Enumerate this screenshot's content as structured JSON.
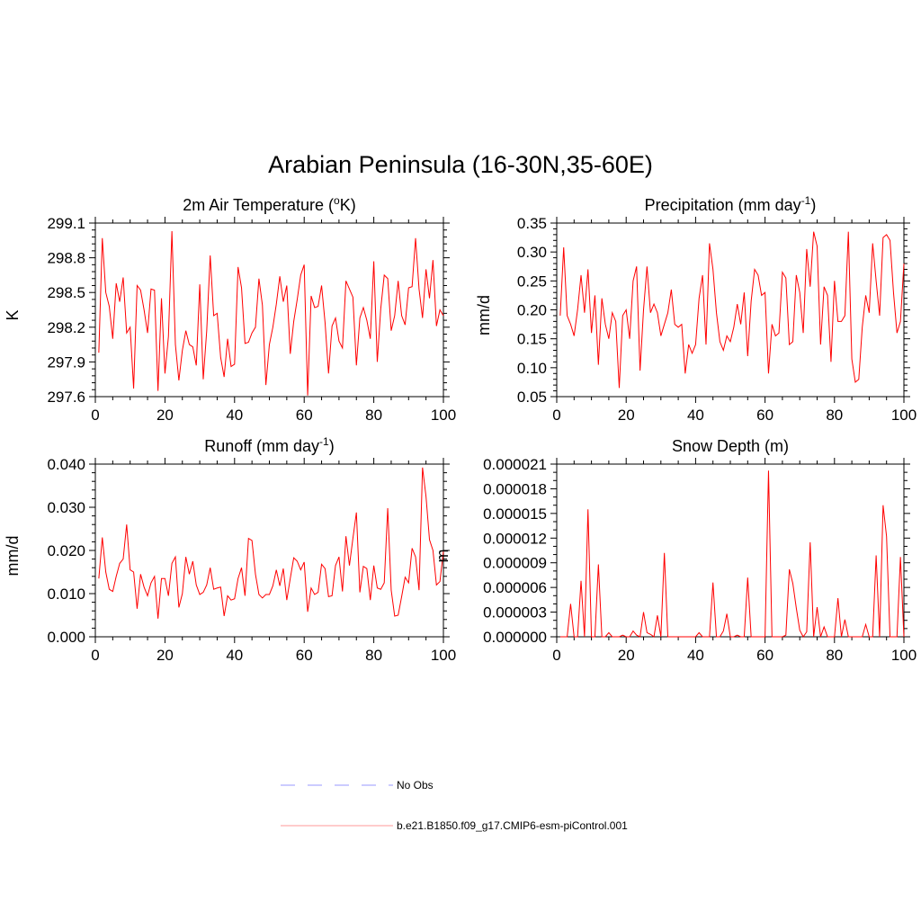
{
  "figure": {
    "title": "Arabian Peninsula (16-30N,35-60E)"
  },
  "legend": {
    "items": [
      {
        "label": "No Obs",
        "color": "#9999ff",
        "dashed": true
      },
      {
        "label": "b.e21.B1850.f09_g17.CMIP6-esm-piControl.001",
        "color": "#ff9999",
        "dashed": false
      }
    ]
  },
  "chart_data": [
    {
      "type": "line",
      "title": "2m Air Temperature (",
      "title_sup": "o",
      "title_after": "K)",
      "ylabel": "K",
      "xlim": [
        0,
        100
      ],
      "ylim": [
        297.6,
        299.1
      ],
      "xticks": [
        0,
        20,
        40,
        60,
        80,
        100
      ],
      "xtick_labels": [
        "0",
        "20",
        "40",
        "60",
        "80",
        "100"
      ],
      "yticks": [
        297.6,
        297.9,
        298.2,
        298.5,
        298.8,
        299.1
      ],
      "ytick_labels": [
        "297.6",
        "297.9",
        "298.2",
        "298.5",
        "298.8",
        "299.1"
      ],
      "yminor_per_major": 5,
      "series": [
        {
          "color": "#ff0000",
          "x": [
            1,
            2,
            3,
            4,
            5,
            6,
            7,
            8,
            9,
            10,
            11,
            12,
            13,
            14,
            15,
            16,
            17,
            18,
            19,
            20,
            21,
            22,
            23,
            24,
            25,
            26,
            27,
            28,
            29,
            30,
            31,
            32,
            33,
            34,
            35,
            36,
            37,
            38,
            39,
            40,
            41,
            42,
            43,
            44,
            45,
            46,
            47,
            48,
            49,
            50,
            51,
            52,
            53,
            54,
            55,
            56,
            57,
            58,
            59,
            60,
            61,
            62,
            63,
            64,
            65,
            66,
            67,
            68,
            69,
            70,
            71,
            72,
            73,
            74,
            75,
            76,
            77,
            78,
            79,
            80,
            81,
            82,
            83,
            84,
            85,
            86,
            87,
            88,
            89,
            90,
            91,
            92,
            93,
            94,
            95,
            96,
            97,
            98,
            99,
            100
          ],
          "values": [
            297.98,
            298.97,
            298.5,
            298.38,
            298.1,
            298.58,
            298.42,
            298.63,
            298.15,
            298.2,
            297.67,
            298.56,
            298.52,
            298.35,
            298.15,
            298.53,
            298.52,
            297.65,
            298.45,
            297.8,
            298.12,
            299.03,
            298.05,
            297.74,
            298.0,
            298.17,
            298.05,
            298.03,
            297.87,
            298.57,
            297.75,
            298.17,
            298.82,
            298.3,
            298.32,
            297.94,
            297.77,
            298.1,
            297.86,
            297.88,
            298.72,
            298.54,
            298.06,
            298.07,
            298.15,
            298.2,
            298.62,
            298.39,
            297.7,
            298.05,
            298.2,
            298.4,
            298.64,
            298.42,
            298.56,
            297.97,
            298.25,
            298.44,
            298.65,
            298.74,
            297.61,
            298.47,
            298.37,
            298.38,
            298.56,
            298.24,
            297.8,
            298.21,
            298.28,
            298.08,
            298.02,
            298.6,
            298.53,
            298.46,
            297.87,
            298.28,
            298.37,
            298.26,
            298.1,
            298.77,
            297.9,
            298.36,
            298.65,
            298.62,
            298.17,
            298.3,
            298.6,
            298.3,
            298.22,
            298.54,
            298.55,
            298.97,
            298.53,
            298.28,
            298.7,
            298.45,
            298.78,
            298.21,
            298.35,
            298.3
          ]
        }
      ]
    },
    {
      "type": "line",
      "title": "Precipitation (mm day",
      "title_sup": "-1",
      "title_after": ")",
      "ylabel": "mm/d",
      "xlim": [
        0,
        100
      ],
      "ylim": [
        0.05,
        0.35
      ],
      "xticks": [
        0,
        20,
        40,
        60,
        80,
        100
      ],
      "xtick_labels": [
        "0",
        "20",
        "40",
        "60",
        "80",
        "100"
      ],
      "yticks": [
        0.05,
        0.1,
        0.15,
        0.2,
        0.25,
        0.3,
        0.35
      ],
      "ytick_labels": [
        "0.05",
        "0.10",
        "0.15",
        "0.20",
        "0.25",
        "0.30",
        "0.35"
      ],
      "yminor_per_major": 5,
      "series": [
        {
          "color": "#ff0000",
          "x": [
            1,
            2,
            3,
            4,
            5,
            6,
            7,
            8,
            9,
            10,
            11,
            12,
            13,
            14,
            15,
            16,
            17,
            18,
            19,
            20,
            21,
            22,
            23,
            24,
            25,
            26,
            27,
            28,
            29,
            30,
            31,
            32,
            33,
            34,
            35,
            36,
            37,
            38,
            39,
            40,
            41,
            42,
            43,
            44,
            45,
            46,
            47,
            48,
            49,
            50,
            51,
            52,
            53,
            54,
            55,
            56,
            57,
            58,
            59,
            60,
            61,
            62,
            63,
            64,
            65,
            66,
            67,
            68,
            69,
            70,
            71,
            72,
            73,
            74,
            75,
            76,
            77,
            78,
            79,
            80,
            81,
            82,
            83,
            84,
            85,
            86,
            87,
            88,
            89,
            90,
            91,
            92,
            93,
            94,
            95,
            96,
            97,
            98,
            99,
            100
          ],
          "values": [
            0.19,
            0.308,
            0.19,
            0.175,
            0.155,
            0.2,
            0.26,
            0.195,
            0.27,
            0.16,
            0.225,
            0.105,
            0.22,
            0.175,
            0.15,
            0.195,
            0.18,
            0.065,
            0.19,
            0.2,
            0.15,
            0.25,
            0.275,
            0.095,
            0.2,
            0.275,
            0.195,
            0.21,
            0.195,
            0.155,
            0.175,
            0.195,
            0.235,
            0.175,
            0.17,
            0.175,
            0.09,
            0.14,
            0.125,
            0.14,
            0.22,
            0.26,
            0.14,
            0.315,
            0.27,
            0.195,
            0.145,
            0.13,
            0.155,
            0.145,
            0.17,
            0.21,
            0.175,
            0.23,
            0.12,
            0.215,
            0.27,
            0.26,
            0.225,
            0.23,
            0.09,
            0.175,
            0.155,
            0.16,
            0.265,
            0.255,
            0.14,
            0.145,
            0.26,
            0.23,
            0.16,
            0.305,
            0.24,
            0.335,
            0.31,
            0.14,
            0.24,
            0.225,
            0.11,
            0.25,
            0.18,
            0.18,
            0.19,
            0.335,
            0.115,
            0.075,
            0.08,
            0.17,
            0.225,
            0.195,
            0.315,
            0.25,
            0.19,
            0.325,
            0.33,
            0.32,
            0.23,
            0.16,
            0.18,
            0.28
          ]
        }
      ]
    },
    {
      "type": "line",
      "title": "Runoff (mm day",
      "title_sup": "-1",
      "title_after": ")",
      "ylabel": "mm/d",
      "xlim": [
        0,
        100
      ],
      "ylim": [
        0.0,
        0.04
      ],
      "xticks": [
        0,
        20,
        40,
        60,
        80,
        100
      ],
      "xtick_labels": [
        "0",
        "20",
        "40",
        "60",
        "80",
        "100"
      ],
      "yticks": [
        0.0,
        0.01,
        0.02,
        0.03,
        0.04
      ],
      "ytick_labels": [
        "0.000",
        "0.010",
        "0.020",
        "0.030",
        "0.040"
      ],
      "yminor_per_major": 5,
      "series": [
        {
          "color": "#ff0000",
          "x": [
            1,
            2,
            3,
            4,
            5,
            6,
            7,
            8,
            9,
            10,
            11,
            12,
            13,
            14,
            15,
            16,
            17,
            18,
            19,
            20,
            21,
            22,
            23,
            24,
            25,
            26,
            27,
            28,
            29,
            30,
            31,
            32,
            33,
            34,
            35,
            36,
            37,
            38,
            39,
            40,
            41,
            42,
            43,
            44,
            45,
            46,
            47,
            48,
            49,
            50,
            51,
            52,
            53,
            54,
            55,
            56,
            57,
            58,
            59,
            60,
            61,
            62,
            63,
            64,
            65,
            66,
            67,
            68,
            69,
            70,
            71,
            72,
            73,
            74,
            75,
            76,
            77,
            78,
            79,
            80,
            81,
            82,
            83,
            84,
            85,
            86,
            87,
            88,
            89,
            90,
            91,
            92,
            93,
            94,
            95,
            96,
            97,
            98,
            99,
            100
          ],
          "values": [
            0.0135,
            0.023,
            0.015,
            0.011,
            0.0105,
            0.014,
            0.017,
            0.018,
            0.026,
            0.0155,
            0.015,
            0.0065,
            0.0145,
            0.0115,
            0.0095,
            0.0125,
            0.014,
            0.0042,
            0.0135,
            0.0135,
            0.0095,
            0.017,
            0.0185,
            0.0068,
            0.01,
            0.0185,
            0.0145,
            0.0175,
            0.012,
            0.0098,
            0.0103,
            0.012,
            0.016,
            0.011,
            0.0113,
            0.0115,
            0.0048,
            0.0095,
            0.0085,
            0.0088,
            0.0135,
            0.016,
            0.0095,
            0.0228,
            0.0223,
            0.0145,
            0.0098,
            0.009,
            0.0098,
            0.0098,
            0.0118,
            0.0155,
            0.0118,
            0.0158,
            0.0085,
            0.0135,
            0.0183,
            0.0175,
            0.0155,
            0.0173,
            0.0058,
            0.0113,
            0.0098,
            0.0103,
            0.0168,
            0.0158,
            0.0093,
            0.0095,
            0.0165,
            0.0185,
            0.0105,
            0.0233,
            0.0165,
            0.0228,
            0.0288,
            0.0103,
            0.0163,
            0.0158,
            0.0085,
            0.0165,
            0.0113,
            0.011,
            0.0125,
            0.0298,
            0.0108,
            0.0048,
            0.005,
            0.0093,
            0.0138,
            0.0125,
            0.0205,
            0.0185,
            0.0108,
            0.0392,
            0.0325,
            0.0225,
            0.02,
            0.012,
            0.0128,
            0.0198
          ]
        }
      ]
    },
    {
      "type": "line",
      "title": "Snow Depth (m)",
      "title_sup": "",
      "title_after": "",
      "ylabel": "m",
      "xlim": [
        0,
        100
      ],
      "ylim": [
        0.0,
        2.1e-05
      ],
      "xticks": [
        0,
        20,
        40,
        60,
        80,
        100
      ],
      "xtick_labels": [
        "0",
        "20",
        "40",
        "60",
        "80",
        "100"
      ],
      "yticks": [
        0.0,
        3e-06,
        6e-06,
        9e-06,
        1.2e-05,
        1.5e-05,
        1.8e-05,
        2.1e-05
      ],
      "ytick_labels": [
        "0.000000",
        "0.000003",
        "0.000006",
        "0.000009",
        "0.000012",
        "0.000015",
        "0.000018",
        "0.000021"
      ],
      "yminor_per_major": 3,
      "series": [
        {
          "color": "#ff0000",
          "x": [
            1,
            2,
            3,
            4,
            5,
            6,
            7,
            8,
            9,
            10,
            11,
            12,
            13,
            14,
            15,
            16,
            17,
            18,
            19,
            20,
            21,
            22,
            23,
            24,
            25,
            26,
            27,
            28,
            29,
            30,
            31,
            32,
            33,
            34,
            35,
            36,
            37,
            38,
            39,
            40,
            41,
            42,
            43,
            44,
            45,
            46,
            47,
            48,
            49,
            50,
            51,
            52,
            53,
            54,
            55,
            56,
            57,
            58,
            59,
            60,
            61,
            62,
            63,
            64,
            65,
            66,
            67,
            68,
            69,
            70,
            71,
            72,
            73,
            74,
            75,
            76,
            77,
            78,
            79,
            80,
            81,
            82,
            83,
            84,
            85,
            86,
            87,
            88,
            89,
            90,
            91,
            92,
            93,
            94,
            95,
            96,
            97,
            98,
            99,
            100
          ],
          "values": [
            0,
            0,
            0,
            4e-06,
            0,
            0,
            6.8e-06,
            0,
            1.55e-05,
            0,
            0,
            8.8e-06,
            0,
            0,
            5e-07,
            0,
            0,
            0,
            2e-07,
            0,
            0,
            7e-07,
            2e-07,
            0,
            3e-06,
            5e-07,
            3e-07,
            0,
            2.6e-06,
            0,
            1.02e-05,
            0,
            0,
            0,
            0,
            0,
            0,
            0,
            0,
            0,
            5e-07,
            0,
            0,
            0,
            6.6e-06,
            0,
            0,
            7e-07,
            2.8e-06,
            0,
            0,
            2e-07,
            0,
            0,
            7.2e-06,
            0,
            0,
            0,
            0,
            0,
            2.02e-05,
            0,
            0,
            0,
            0,
            2e-07,
            8.2e-06,
            6.5e-06,
            3.5e-06,
            8e-07,
            0,
            6e-07,
            1.15e-05,
            0,
            3.6e-06,
            0,
            1.2e-06,
            0,
            0,
            0,
            4.7e-06,
            0,
            2.1e-06,
            0,
            0,
            0,
            0,
            0,
            1.5e-06,
            0,
            0,
            9.9e-06,
            0,
            1.6e-05,
            1.22e-05,
            0,
            0,
            0,
            9.7e-06,
            0
          ]
        }
      ]
    }
  ]
}
